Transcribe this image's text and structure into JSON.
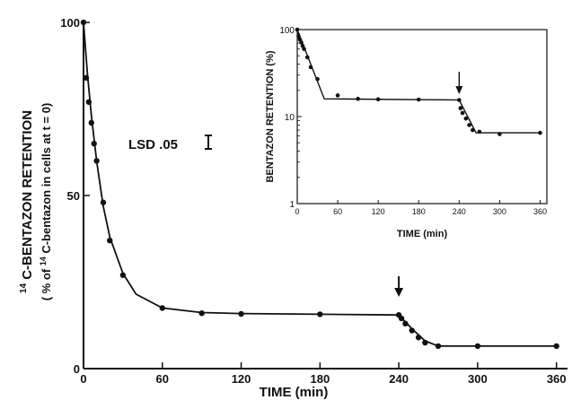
{
  "chart_data": [
    {
      "type": "scatter",
      "xlabel": "TIME (min)",
      "ylabel": "C-BENTAZON RETENTION",
      "ylabel_superscript": "14",
      "ylabel2": "% of C-bentazon in cells at t = 0",
      "ylabel2_parts": [
        "( % of ",
        "14",
        "C-bentazon in cells at t = 0)"
      ],
      "annotation": "LSD .05",
      "x_ticks": [
        "0",
        "60",
        "120",
        "180",
        "240",
        "300",
        "360"
      ],
      "y_ticks": [
        "0",
        "50",
        "100"
      ],
      "xlim": [
        0,
        365
      ],
      "ylim": [
        0,
        100
      ],
      "arrow_at_x": 240,
      "series": [
        {
          "x": [
            0,
            2,
            4,
            6,
            8,
            10,
            15,
            20,
            30,
            60,
            90,
            120,
            180,
            240,
            242,
            245,
            250,
            255,
            260,
            270,
            300,
            360
          ],
          "values": [
            100,
            84,
            77,
            71,
            65,
            60,
            48,
            37,
            27,
            17.5,
            16,
            15.8,
            15.7,
            15.5,
            14.5,
            13,
            11,
            9,
            7.5,
            6.5,
            6.5,
            6.5
          ]
        }
      ],
      "fit_line": {
        "x": [
          0,
          3,
          6,
          10,
          15,
          20,
          30,
          40,
          60,
          90,
          120,
          180,
          240,
          250,
          260,
          270,
          300,
          360
        ],
        "values": [
          100,
          85,
          73,
          60,
          47,
          38,
          27.5,
          21.5,
          17.5,
          16.2,
          15.9,
          15.7,
          15.5,
          11.5,
          8,
          6.5,
          6.5,
          6.5
        ]
      }
    },
    {
      "type": "scatter",
      "yscale": "log",
      "xlabel": "TIME (min)",
      "ylabel": "BENTAZON RETENTION (%)",
      "x_ticks": [
        "0",
        "60",
        "120",
        "180",
        "240",
        "300",
        "360"
      ],
      "y_ticks": [
        "1",
        "10",
        "100"
      ],
      "xlim": [
        0,
        370
      ],
      "ylim": [
        1,
        100
      ],
      "arrow_at_x": 240,
      "series": [
        {
          "x": [
            0,
            2,
            4,
            6,
            8,
            10,
            15,
            20,
            30,
            60,
            90,
            120,
            180,
            240,
            242,
            245,
            250,
            255,
            260,
            270,
            300,
            360
          ],
          "values": [
            100,
            84,
            77,
            71,
            65,
            60,
            48,
            37,
            27,
            17.5,
            16,
            15.8,
            15.7,
            15.5,
            12.5,
            11,
            9.5,
            8,
            7,
            6.7,
            6.3,
            6.5
          ]
        }
      ],
      "fit_line": {
        "x": [
          0,
          40,
          240,
          265,
          360
        ],
        "values": [
          100,
          16,
          15.5,
          6.5,
          6.5
        ]
      }
    }
  ]
}
